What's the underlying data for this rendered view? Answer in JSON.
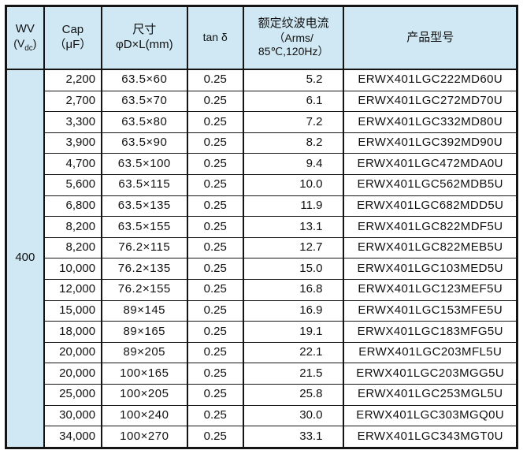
{
  "table": {
    "colors": {
      "header_bg": "#cfe8f4",
      "border": "#141414",
      "row_bg": "#ffffff"
    },
    "header": {
      "wv_line1": "WV",
      "wv_paren_open": "(V",
      "wv_sub": "dc",
      "wv_paren_close": ")",
      "cap_line1": "Cap",
      "cap_line2": "（μF）",
      "size_line1": "尺寸",
      "size_line2": "φD×L(mm)",
      "tan": "tan δ",
      "ripple_line1": "额定纹波电流",
      "ripple_line2": "（Arms/",
      "ripple_line3": "85℃,120Hz）",
      "model": "产品型号"
    },
    "wv_value": "400",
    "rows": [
      {
        "cap": "2,200",
        "size": "63.5×60",
        "tan": "0.25",
        "ripple": "5.2",
        "model": "ERWX401LGC222MD60U"
      },
      {
        "cap": "2,700",
        "size": "63.5×70",
        "tan": "0.25",
        "ripple": "6.1",
        "model": "ERWX401LGC272MD70U"
      },
      {
        "cap": "3,300",
        "size": "63.5×80",
        "tan": "0.25",
        "ripple": "7.2",
        "model": "ERWX401LGC332MD80U"
      },
      {
        "cap": "3,900",
        "size": "63.5×90",
        "tan": "0.25",
        "ripple": "8.2",
        "model": "ERWX401LGC392MD90U"
      },
      {
        "cap": "4,700",
        "size": "63.5×100",
        "tan": "0.25",
        "ripple": "9.4",
        "model": "ERWX401LGC472MDA0U"
      },
      {
        "cap": "5,600",
        "size": "63.5×115",
        "tan": "0.25",
        "ripple": "10.0",
        "model": "ERWX401LGC562MDB5U"
      },
      {
        "cap": "6,800",
        "size": "63.5×135",
        "tan": "0.25",
        "ripple": "11.9",
        "model": "ERWX401LGC682MDD5U"
      },
      {
        "cap": "8,200",
        "size": "63.5×155",
        "tan": "0.25",
        "ripple": "13.1",
        "model": "ERWX401LGC822MDF5U"
      },
      {
        "cap": "8,200",
        "size": "76.2×115",
        "tan": "0.25",
        "ripple": "12.7",
        "model": "ERWX401LGC822MEB5U"
      },
      {
        "cap": "10,000",
        "size": "76.2×135",
        "tan": "0.25",
        "ripple": "15.0",
        "model": "ERWX401LGC103MED5U"
      },
      {
        "cap": "12,000",
        "size": "76.2×155",
        "tan": "0.25",
        "ripple": "16.8",
        "model": "ERWX401LGC123MEF5U"
      },
      {
        "cap": "15,000",
        "size": "89×145",
        "tan": "0.25",
        "ripple": "16.9",
        "model": "ERWX401LGC153MFE5U"
      },
      {
        "cap": "18,000",
        "size": "89×165",
        "tan": "0.25",
        "ripple": "19.1",
        "model": "ERWX401LGC183MFG5U"
      },
      {
        "cap": "20,000",
        "size": "89×205",
        "tan": "0.25",
        "ripple": "22.1",
        "model": "ERWX401LGC203MFL5U"
      },
      {
        "cap": "20,000",
        "size": "100×165",
        "tan": "0.25",
        "ripple": "21.5",
        "model": "ERWX401LGC203MGG5U"
      },
      {
        "cap": "25,000",
        "size": "100×205",
        "tan": "0.25",
        "ripple": "25.8",
        "model": "ERWX401LGC253MGL5U"
      },
      {
        "cap": "30,000",
        "size": "100×240",
        "tan": "0.25",
        "ripple": "30.0",
        "model": "ERWX401LGC303MGQ0U"
      },
      {
        "cap": "34,000",
        "size": "100×270",
        "tan": "0.25",
        "ripple": "33.1",
        "model": "ERWX401LGC343MGT0U"
      }
    ]
  }
}
